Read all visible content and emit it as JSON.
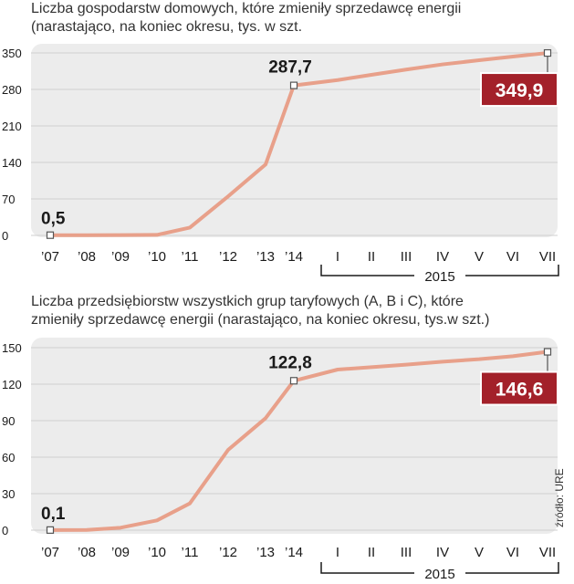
{
  "source": "źródło: URE",
  "charts": [
    {
      "title_line1": "Liczba gospodarstw domowych, które zmieniły sprzedawcę energii",
      "title_line2": "(narastająco, na koniec okresu,  tys. w szt.",
      "year_group_label": "2015"
    },
    {
      "title_line1": "Liczba przedsiębiorstw wszystkich grup taryfowych (A, B i C), które",
      "title_line2": "zmieniły sprzedawcę energii (narastająco, na koniec okresu,  tys.w szt.)",
      "year_group_label": "2015"
    }
  ],
  "chart_data": [
    {
      "type": "line",
      "title": "Liczba gospodarstw domowych, które zmieniły sprzedawcę energii (narastająco, na koniec okresu,  tys. w szt.",
      "categories": [
        "’07",
        "’08",
        "’09",
        "’10",
        "’11",
        "’12",
        "’13",
        "’14",
        "I",
        "II",
        "III",
        "IV",
        "V",
        "VI",
        "VII"
      ],
      "values": [
        0.5,
        0.5,
        0.6,
        1.0,
        15,
        75,
        136,
        287.7,
        298,
        308,
        318,
        328,
        336,
        343,
        349.9
      ],
      "ylim": [
        0,
        350
      ],
      "yticks": [
        0,
        70,
        140,
        210,
        280,
        350
      ],
      "annotations": [
        {
          "index": 0,
          "text": "0,5"
        },
        {
          "index": 7,
          "text": "287,7"
        },
        {
          "index": 14,
          "text": "349,9",
          "highlight": true
        }
      ],
      "grid": true,
      "line_color": "#e8a08a",
      "highlight_color": "#a3212a"
    },
    {
      "type": "line",
      "title": "Liczba przedsiębiorstw wszystkich grup taryfowych (A, B i C), które zmieniły sprzedawcę energii (narastająco, na koniec okresu,  tys.w szt.)",
      "categories": [
        "’07",
        "’08",
        "’09",
        "’10",
        "’11",
        "’12",
        "’13",
        "’14",
        "I",
        "II",
        "III",
        "IV",
        "V",
        "VI",
        "VII"
      ],
      "values": [
        0.1,
        0.2,
        2,
        8,
        22,
        66,
        92,
        122.8,
        132,
        134,
        136,
        138.5,
        140.5,
        143,
        146.6
      ],
      "ylim": [
        0,
        150
      ],
      "yticks": [
        0,
        30,
        60,
        90,
        120,
        150
      ],
      "annotations": [
        {
          "index": 0,
          "text": "0,1"
        },
        {
          "index": 7,
          "text": "122,8"
        },
        {
          "index": 14,
          "text": "146,6",
          "highlight": true
        }
      ],
      "grid": true,
      "line_color": "#e8a08a",
      "highlight_color": "#a3212a"
    }
  ]
}
